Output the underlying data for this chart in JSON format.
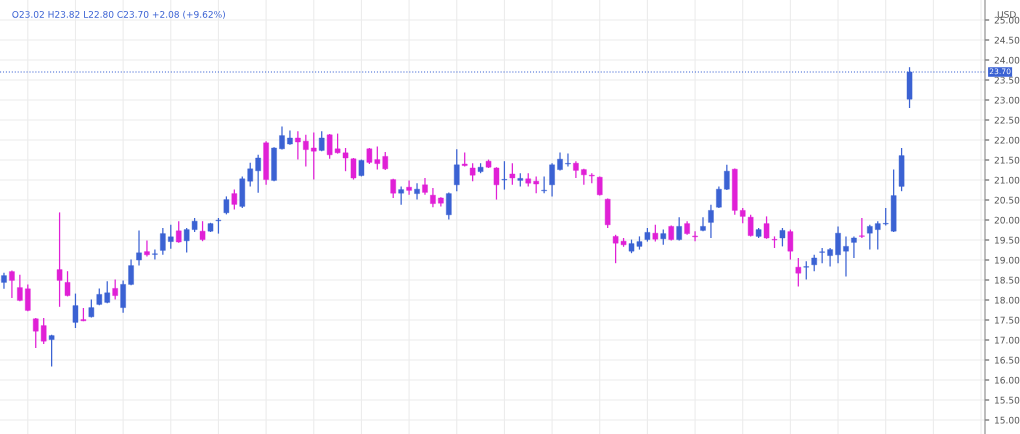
{
  "chart_data": {
    "type": "candlestick",
    "categories": [
      null,
      null,
      null,
      null,
      null,
      null,
      null,
      null,
      null,
      null,
      null,
      null,
      null,
      null,
      null,
      null,
      null,
      null,
      null,
      null,
      null,
      null,
      null,
      null,
      null,
      null,
      null,
      null,
      null,
      null,
      null,
      null,
      null,
      null,
      null,
      null,
      null,
      null,
      null,
      null,
      null,
      null,
      null,
      null,
      null,
      null,
      null,
      null,
      null,
      null,
      null,
      null,
      null,
      null,
      null,
      null,
      null,
      null,
      null,
      null,
      null,
      null,
      null,
      null,
      null,
      null,
      null,
      null,
      null,
      null,
      null,
      null,
      null,
      null,
      null,
      null,
      null,
      null,
      null,
      null,
      null,
      null,
      null,
      null,
      null,
      null,
      null,
      null,
      null,
      null,
      null,
      null,
      null,
      null,
      null,
      null,
      null,
      null,
      null,
      null,
      null,
      null,
      null,
      null,
      null,
      null,
      null,
      null,
      null,
      null,
      null,
      null,
      null,
      null,
      null,
      null,
      null,
      null,
      null,
      null,
      null,
      null,
      null,
      null
    ],
    "ohlc": [
      [
        18.44,
        18.68,
        18.28,
        18.61
      ],
      [
        18.71,
        18.74,
        18.05,
        18.49
      ],
      [
        18.31,
        18.63,
        17.97,
        17.99
      ],
      [
        18.28,
        18.39,
        17.72,
        17.74
      ],
      [
        17.53,
        17.55,
        16.8,
        17.22
      ],
      [
        17.36,
        17.55,
        16.9,
        16.97
      ],
      [
        17.01,
        17.13,
        16.34,
        17.11
      ],
      [
        18.76,
        20.19,
        17.83,
        18.49
      ],
      [
        18.44,
        18.72,
        18.09,
        18.11
      ],
      [
        17.44,
        18.16,
        17.3,
        17.86
      ],
      [
        17.51,
        17.8,
        17.47,
        17.48
      ],
      [
        17.58,
        18.01,
        17.56,
        17.81
      ],
      [
        17.89,
        18.29,
        17.87,
        18.14
      ],
      [
        17.94,
        18.47,
        17.92,
        18.18
      ],
      [
        18.29,
        18.51,
        18.01,
        18.11
      ],
      [
        17.81,
        18.49,
        17.68,
        18.39
      ],
      [
        18.39,
        19.01,
        18.37,
        18.86
      ],
      [
        19.0,
        19.74,
        18.86,
        19.18
      ],
      [
        19.21,
        19.49,
        19.09,
        19.13
      ],
      [
        19.14,
        19.26,
        19.01,
        19.15
      ],
      [
        19.24,
        19.8,
        19.13,
        19.66
      ],
      [
        19.46,
        19.88,
        19.28,
        19.58
      ],
      [
        19.73,
        19.97,
        19.43,
        19.45
      ],
      [
        19.48,
        19.8,
        19.19,
        19.76
      ],
      [
        19.76,
        20.05,
        19.7,
        19.97
      ],
      [
        19.72,
        19.97,
        19.47,
        19.51
      ],
      [
        19.72,
        19.93,
        19.7,
        19.91
      ],
      [
        19.98,
        20.05,
        19.66,
        19.99
      ],
      [
        20.18,
        20.59,
        20.14,
        20.51
      ],
      [
        20.66,
        20.76,
        20.26,
        20.39
      ],
      [
        20.34,
        21.09,
        20.3,
        21.03
      ],
      [
        20.97,
        21.43,
        20.84,
        21.28
      ],
      [
        21.23,
        21.63,
        20.68,
        21.55
      ],
      [
        21.93,
        21.97,
        20.88,
        21.01
      ],
      [
        20.99,
        21.82,
        20.97,
        21.8
      ],
      [
        21.78,
        22.34,
        21.76,
        22.11
      ],
      [
        21.9,
        22.24,
        21.88,
        22.05
      ],
      [
        22.05,
        22.22,
        21.51,
        21.95
      ],
      [
        21.97,
        22.13,
        21.34,
        21.76
      ],
      [
        21.8,
        22.19,
        21.01,
        21.72
      ],
      [
        21.74,
        22.22,
        21.72,
        22.05
      ],
      [
        22.13,
        22.15,
        21.53,
        21.63
      ],
      [
        21.78,
        22.16,
        21.66,
        21.68
      ],
      [
        21.68,
        21.8,
        21.22,
        21.55
      ],
      [
        21.53,
        21.55,
        21.01,
        21.05
      ],
      [
        21.11,
        21.51,
        21.09,
        21.49
      ],
      [
        21.78,
        21.8,
        21.4,
        21.44
      ],
      [
        21.51,
        21.84,
        21.26,
        21.41
      ],
      [
        21.59,
        21.7,
        21.25,
        21.28
      ],
      [
        21.01,
        21.03,
        20.55,
        20.67
      ],
      [
        20.67,
        20.84,
        20.38,
        20.76
      ],
      [
        20.82,
        20.99,
        20.63,
        20.74
      ],
      [
        20.66,
        20.92,
        20.51,
        20.77
      ],
      [
        20.88,
        21.05,
        20.63,
        20.69
      ],
      [
        20.62,
        20.8,
        20.32,
        20.41
      ],
      [
        20.55,
        20.57,
        20.34,
        20.42
      ],
      [
        20.13,
        20.69,
        20.01,
        20.66
      ],
      [
        20.88,
        21.77,
        20.72,
        21.38
      ],
      [
        21.4,
        21.69,
        21.34,
        21.36
      ],
      [
        21.3,
        21.42,
        20.97,
        21.12
      ],
      [
        21.21,
        21.42,
        21.17,
        21.32
      ],
      [
        21.47,
        21.51,
        21.3,
        21.32
      ],
      [
        21.3,
        21.32,
        20.51,
        20.88
      ],
      [
        21.0,
        21.47,
        20.76,
        21.01
      ],
      [
        21.15,
        21.42,
        20.88,
        21.05
      ],
      [
        20.99,
        21.17,
        20.84,
        21.04
      ],
      [
        21.03,
        21.17,
        20.84,
        20.92
      ],
      [
        20.97,
        21.09,
        20.67,
        20.9
      ],
      [
        20.73,
        21.09,
        20.67,
        20.74
      ],
      [
        20.88,
        21.42,
        20.59,
        21.38
      ],
      [
        21.26,
        21.69,
        21.24,
        21.52
      ],
      [
        21.4,
        21.66,
        21.34,
        21.41
      ],
      [
        21.42,
        21.47,
        21.05,
        21.24
      ],
      [
        21.26,
        21.28,
        20.88,
        21.13
      ],
      [
        21.12,
        21.17,
        20.92,
        21.1
      ],
      [
        21.07,
        21.09,
        20.61,
        20.63
      ],
      [
        20.52,
        20.54,
        19.8,
        19.88
      ],
      [
        19.59,
        19.63,
        18.92,
        19.42
      ],
      [
        19.47,
        19.55,
        19.33,
        19.38
      ],
      [
        19.22,
        19.51,
        19.17,
        19.41
      ],
      [
        19.34,
        19.59,
        19.26,
        19.46
      ],
      [
        19.51,
        19.8,
        19.46,
        19.69
      ],
      [
        19.67,
        19.88,
        19.46,
        19.52
      ],
      [
        19.53,
        19.76,
        19.38,
        19.66
      ],
      [
        19.84,
        19.86,
        19.49,
        19.51
      ],
      [
        19.51,
        20.07,
        19.49,
        19.84
      ],
      [
        19.91,
        19.97,
        19.63,
        19.66
      ],
      [
        19.6,
        19.72,
        19.47,
        19.58
      ],
      [
        19.74,
        20.07,
        19.72,
        19.84
      ],
      [
        19.94,
        20.38,
        19.55,
        20.24
      ],
      [
        20.32,
        20.84,
        20.3,
        20.77
      ],
      [
        20.77,
        21.38,
        20.75,
        21.22
      ],
      [
        21.27,
        21.29,
        20.13,
        20.24
      ],
      [
        20.24,
        20.3,
        19.92,
        20.09
      ],
      [
        20.07,
        20.13,
        19.59,
        19.61
      ],
      [
        19.59,
        19.8,
        19.55,
        19.76
      ],
      [
        19.91,
        20.09,
        19.53,
        19.55
      ],
      [
        19.51,
        19.59,
        19.3,
        19.5
      ],
      [
        19.55,
        19.8,
        19.34,
        19.74
      ],
      [
        19.71,
        19.76,
        19.01,
        19.22
      ],
      [
        18.82,
        19.05,
        18.34,
        18.67
      ],
      [
        18.82,
        18.97,
        18.51,
        18.83
      ],
      [
        18.88,
        19.13,
        18.72,
        19.05
      ],
      [
        19.19,
        19.3,
        18.92,
        19.2
      ],
      [
        19.11,
        19.3,
        18.84,
        19.26
      ],
      [
        19.13,
        19.84,
        18.92,
        19.67
      ],
      [
        19.22,
        19.59,
        18.59,
        19.34
      ],
      [
        19.44,
        19.59,
        19.05,
        19.55
      ],
      [
        19.6,
        20.05,
        19.55,
        19.59
      ],
      [
        19.67,
        19.88,
        19.26,
        19.84
      ],
      [
        19.76,
        19.97,
        19.26,
        19.91
      ],
      [
        19.9,
        20.3,
        19.86,
        19.91
      ],
      [
        19.72,
        21.26,
        19.7,
        20.61
      ],
      [
        20.84,
        21.8,
        20.72,
        21.61
      ],
      [
        23.02,
        23.82,
        22.8,
        23.7
      ],
      null,
      null,
      null,
      null,
      null,
      null,
      null,
      null,
      null
    ],
    "colors": [
      "#3b62d3",
      "#e020d6",
      "#e020d6",
      "#e020d6",
      "#e020d6",
      "#e020d6",
      "#3b62d3",
      "#e020d6",
      "#e020d6",
      "#3b62d3",
      "#e020d6",
      "#3b62d3",
      "#3b62d3",
      "#3b62d3",
      "#e020d6",
      "#3b62d3",
      "#3b62d3",
      "#3b62d3",
      "#e020d6",
      "#3b62d3",
      "#3b62d3",
      "#3b62d3",
      "#e020d6",
      "#3b62d3",
      "#3b62d3",
      "#e020d6",
      "#3b62d3",
      "#3b62d3",
      "#3b62d3",
      "#e020d6",
      "#3b62d3",
      "#3b62d3",
      "#3b62d3",
      "#e020d6",
      "#3b62d3",
      "#3b62d3",
      "#3b62d3",
      "#e020d6",
      "#e020d6",
      "#e020d6",
      "#3b62d3",
      "#e020d6",
      "#e020d6",
      "#e020d6",
      "#e020d6",
      "#3b62d3",
      "#e020d6",
      "#e020d6",
      "#e020d6",
      "#e020d6",
      "#3b62d3",
      "#e020d6",
      "#3b62d3",
      "#e020d6",
      "#e020d6",
      "#e020d6",
      "#3b62d3",
      "#3b62d3",
      "#e020d6",
      "#e020d6",
      "#3b62d3",
      "#e020d6",
      "#e020d6",
      "#3b62d3",
      "#e020d6",
      "#3b62d3",
      "#e020d6",
      "#e020d6",
      "#3b62d3",
      "#3b62d3",
      "#3b62d3",
      "#3b62d3",
      "#e020d6",
      "#e020d6",
      "#e020d6",
      "#e020d6",
      "#e020d6",
      "#e020d6",
      "#e020d6",
      "#3b62d3",
      "#3b62d3",
      "#3b62d3",
      "#e020d6",
      "#3b62d3",
      "#e020d6",
      "#3b62d3",
      "#e020d6",
      "#e020d6",
      "#3b62d3",
      "#3b62d3",
      "#3b62d3",
      "#3b62d3",
      "#e020d6",
      "#e020d6",
      "#e020d6",
      "#3b62d3",
      "#e020d6",
      "#e020d6",
      "#3b62d3",
      "#e020d6",
      "#e020d6",
      "#3b62d3",
      "#3b62d3",
      "#3b62d3",
      "#3b62d3",
      "#3b62d3",
      "#3b62d3",
      "#3b62d3",
      "#e020d6",
      "#3b62d3",
      "#3b62d3",
      "#3b62d3",
      "#3b62d3",
      "#3b62d3",
      "#3b62d3",
      null,
      null,
      null,
      null,
      null,
      null,
      null,
      null,
      null
    ],
    "ylim": [
      14.65,
      25.5
    ],
    "yticks": [
      {
        "value": 15,
        "label": "15.00"
      },
      {
        "value": 15.5,
        "label": "15.50"
      },
      {
        "value": 16,
        "label": "16.00"
      },
      {
        "value": 16.5,
        "label": "16.50"
      },
      {
        "value": 17,
        "label": "17.00"
      },
      {
        "value": 17.5,
        "label": "17.50"
      },
      {
        "value": 18,
        "label": "18.00"
      },
      {
        "value": 18.5,
        "label": "18.50"
      },
      {
        "value": 19,
        "label": "19.00"
      },
      {
        "value": 19.5,
        "label": "19.50"
      },
      {
        "value": 20,
        "label": "20.00"
      },
      {
        "value": 20.5,
        "label": "20.50"
      },
      {
        "value": 21,
        "label": "21.00"
      },
      {
        "value": 21.5,
        "label": "21.50"
      },
      {
        "value": 22,
        "label": "22.00"
      },
      {
        "value": 22.5,
        "label": "22.50"
      },
      {
        "value": 23,
        "label": "23.00"
      },
      {
        "value": 23.5,
        "label": "23.50"
      },
      {
        "value": 24,
        "label": "24.00"
      },
      {
        "value": 24.5,
        "label": "24.50"
      },
      {
        "value": 25,
        "label": "25.00"
      }
    ],
    "ylabel": "USD",
    "tick_labels": "y",
    "grid": true,
    "ref_lines": [
      {
        "axis": "y",
        "value": 23.7,
        "label": "23.70",
        "color": "#3b62d3",
        "line_style": "dotted"
      }
    ],
    "annotations": [
      "O23.02 H23.82 L22.80 C23.70 +2.08 (+9.62%)"
    ]
  }
}
